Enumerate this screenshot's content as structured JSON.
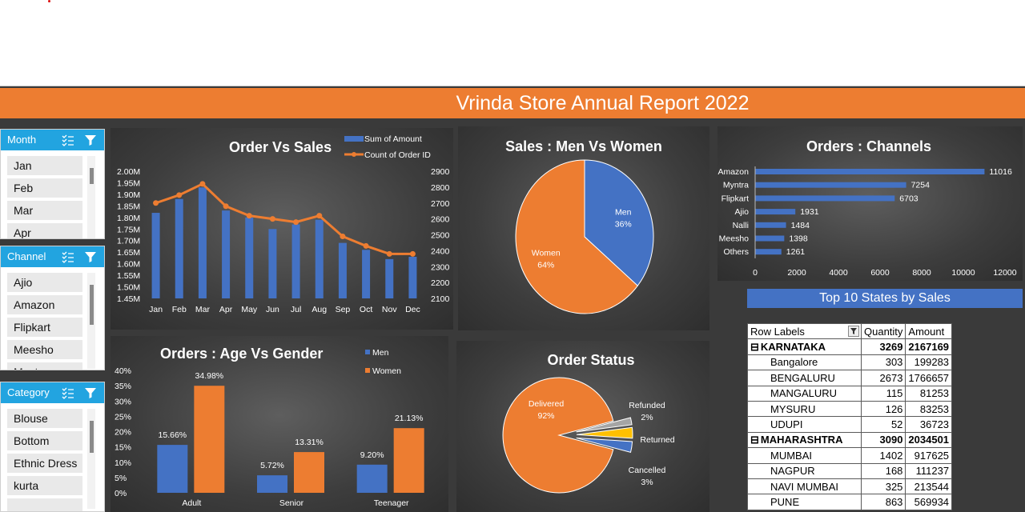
{
  "title": "Vrinda Store Annual Report 2022",
  "colors": {
    "banner": "#ed7d31",
    "blue": "#4472c4",
    "orange": "#ed7d31",
    "slicer_head": "#22a4e0"
  },
  "slicers": [
    {
      "label": "Month",
      "items": [
        "Jan",
        "Feb",
        "Mar",
        "Apr"
      ]
    },
    {
      "label": "Channel",
      "items": [
        "Ajio",
        "Amazon",
        "Flipkart",
        "Meesho",
        "Myntra"
      ]
    },
    {
      "label": "Category",
      "items": [
        "Blouse",
        "Bottom",
        "Ethnic Dress",
        "kurta"
      ]
    }
  ],
  "chart_data": [
    {
      "type": "bar",
      "title": "Order Vs Sales",
      "categories": [
        "Jan",
        "Feb",
        "Mar",
        "Apr",
        "May",
        "Jun",
        "Jul",
        "Aug",
        "Sep",
        "Oct",
        "Nov",
        "Dec"
      ],
      "series": [
        {
          "name": "Sum of Amount",
          "type": "bar",
          "axis": "left",
          "values": [
            1.82,
            1.88,
            1.93,
            1.83,
            1.8,
            1.75,
            1.77,
            1.79,
            1.69,
            1.66,
            1.62,
            1.63
          ]
        },
        {
          "name": "Count of Order ID",
          "type": "line",
          "axis": "right",
          "values": [
            2700,
            2750,
            2820,
            2680,
            2620,
            2600,
            2580,
            2620,
            2490,
            2430,
            2380,
            2380
          ]
        }
      ],
      "yleft_ticks": [
        "2.00M",
        "1.95M",
        "1.90M",
        "1.85M",
        "1.80M",
        "1.75M",
        "1.70M",
        "1.65M",
        "1.60M",
        "1.55M",
        "1.50M",
        "1.45M"
      ],
      "yright_ticks": [
        "2900",
        "2800",
        "2700",
        "2600",
        "2500",
        "2400",
        "2300",
        "2200",
        "2100"
      ],
      "ylim_left": [
        1.45,
        2.0
      ],
      "ylim_right": [
        2100,
        2900
      ]
    },
    {
      "type": "pie",
      "title": "Sales : Men Vs Women",
      "slices": [
        {
          "name": "Men",
          "value": 36,
          "label": "36%"
        },
        {
          "name": "Women",
          "value": 64,
          "label": "64%"
        }
      ]
    },
    {
      "type": "bar",
      "orientation": "horizontal",
      "title": "Orders : Channels",
      "categories": [
        "Amazon",
        "Myntra",
        "Flipkart",
        "Ajio",
        "Nalli",
        "Meesho",
        "Others"
      ],
      "values": [
        11016,
        7254,
        6703,
        1931,
        1484,
        1398,
        1261
      ],
      "xticks": [
        "0",
        "2000",
        "4000",
        "6000",
        "8000",
        "10000",
        "12000"
      ],
      "xlim": [
        0,
        12000
      ]
    },
    {
      "type": "bar",
      "title": "Orders : Age Vs Gender",
      "categories": [
        "Adult",
        "Senior",
        "Teenager"
      ],
      "series": [
        {
          "name": "Men",
          "values": [
            15.66,
            5.72,
            9.2
          ],
          "labels": [
            "15.66%",
            "5.72%",
            "9.20%"
          ]
        },
        {
          "name": "Women",
          "values": [
            34.98,
            13.31,
            21.13
          ],
          "labels": [
            "34.98%",
            "13.31%",
            "21.13%"
          ]
        }
      ],
      "yticks": [
        "40%",
        "35%",
        "30%",
        "25%",
        "20%",
        "15%",
        "10%",
        "5%",
        "0%"
      ],
      "ylim": [
        0,
        40
      ]
    },
    {
      "type": "pie",
      "title": "Order Status",
      "slices": [
        {
          "name": "Delivered",
          "value": 92,
          "label": "92%"
        },
        {
          "name": "Refunded",
          "value": 2,
          "label": "2%"
        },
        {
          "name": "Returned",
          "value": 3,
          "label": ""
        },
        {
          "name": "Cancelled",
          "value": 3,
          "label": "3%"
        }
      ]
    }
  ],
  "top_states": {
    "heading": "Top 10 States by Sales",
    "columns": [
      "Row Labels",
      "Quantity",
      "Amount"
    ],
    "rows": [
      {
        "kind": "state",
        "label": "KARNATAKA",
        "qty": "3269",
        "amt": "2167169"
      },
      {
        "kind": "city",
        "label": "Bangalore",
        "qty": "303",
        "amt": "199283"
      },
      {
        "kind": "city",
        "label": "BENGALURU",
        "qty": "2673",
        "amt": "1766657"
      },
      {
        "kind": "city",
        "label": "MANGALURU",
        "qty": "115",
        "amt": "81253"
      },
      {
        "kind": "city",
        "label": "MYSURU",
        "qty": "126",
        "amt": "83253"
      },
      {
        "kind": "city",
        "label": "UDUPI",
        "qty": "52",
        "amt": "36723"
      },
      {
        "kind": "state",
        "label": "MAHARASHTRA",
        "qty": "3090",
        "amt": "2034501"
      },
      {
        "kind": "city",
        "label": "MUMBAI",
        "qty": "1402",
        "amt": "917625"
      },
      {
        "kind": "city",
        "label": "NAGPUR",
        "qty": "168",
        "amt": "111237"
      },
      {
        "kind": "city",
        "label": "NAVI MUMBAI",
        "qty": "325",
        "amt": "213544"
      },
      {
        "kind": "city",
        "label": "PUNE",
        "qty": "863",
        "amt": "569934"
      }
    ]
  }
}
